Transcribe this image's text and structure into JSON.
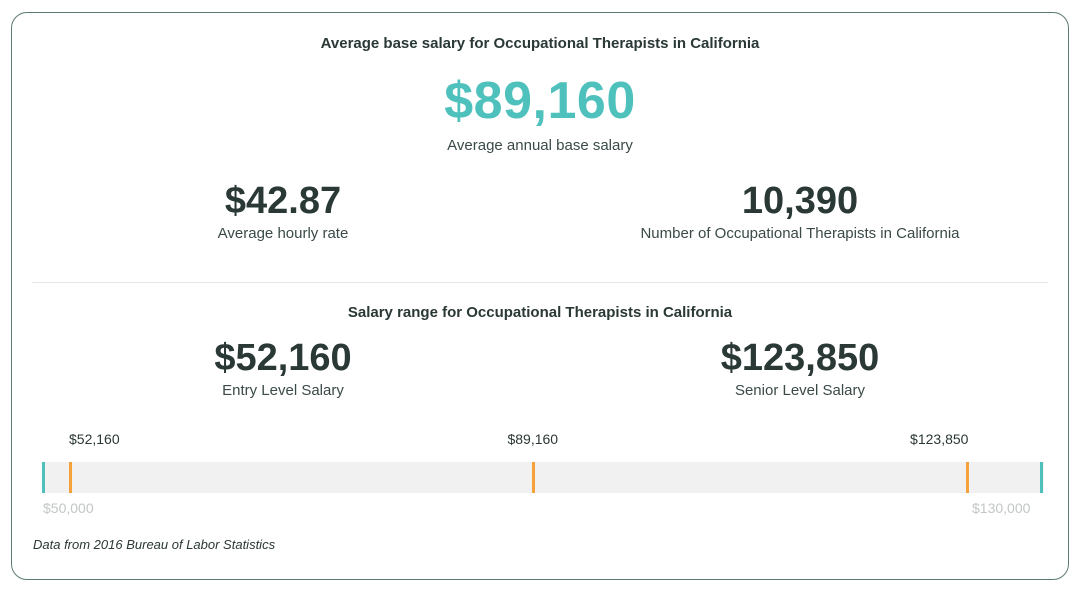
{
  "average": {
    "title": "Average base salary for Occupational Therapists in California",
    "salary": "$89,160",
    "salary_label": "Average annual base salary"
  },
  "stats": [
    {
      "value": "$42.87",
      "label": "Average hourly rate"
    },
    {
      "value": "10,390",
      "label": "Number of Occupational Therapists in California"
    }
  ],
  "range": {
    "title": "Salary range for Occupational Therapists in California",
    "entry": {
      "value": "$52,160",
      "label": "Entry Level Salary"
    },
    "senior": {
      "value": "$123,850",
      "label": "Senior Level Salary"
    },
    "axis_min_label": "$50,000",
    "axis_max_label": "$130,000",
    "axis_min": 50000,
    "axis_max": 130000,
    "markers": [
      {
        "value": 52160,
        "label": "$52,160"
      },
      {
        "value": 89160,
        "label": "$89,160"
      },
      {
        "value": 123850,
        "label": "$123,850"
      }
    ]
  },
  "source": "Data from 2016 Bureau of Labor Statistics",
  "colors": {
    "accent": "#4fc1bd",
    "marker": "#f5a23a",
    "track": "#f1f1f1",
    "text": "#2a3836"
  }
}
